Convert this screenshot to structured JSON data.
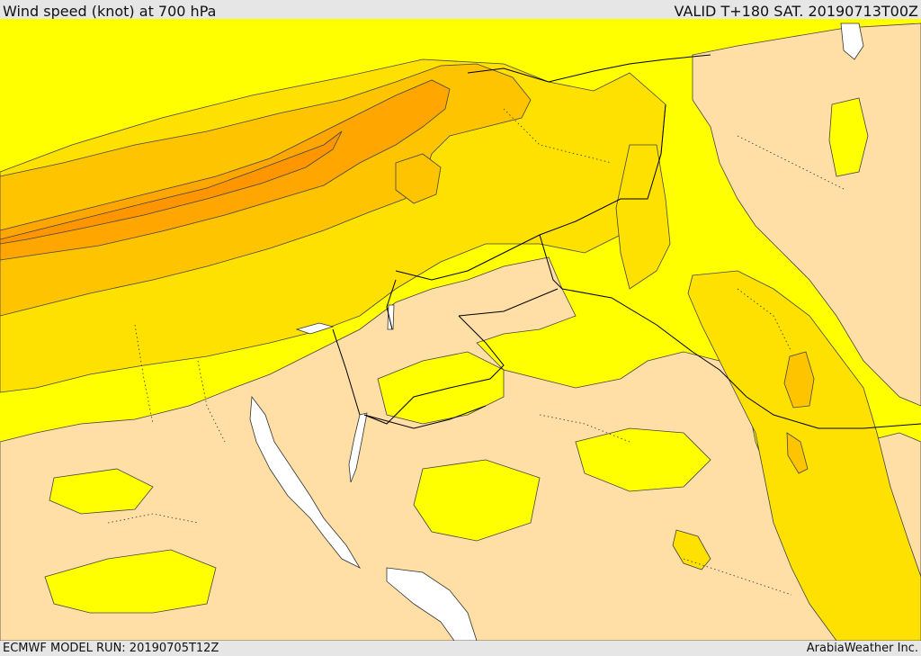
{
  "header": {
    "title": "Wind speed (knot) at 700 hPa",
    "valid": "VALID T+180 SAT. 20190713T00Z"
  },
  "footer": {
    "model_run": "ECMWF MODEL RUN: 20190705T12Z",
    "credit": "ArabiaWeather Inc."
  },
  "map": {
    "colors": {
      "calm": "#ffdfa6",
      "light": "#ffff00",
      "moderate": "#ffe100",
      "fresh": "#ffc400",
      "strong": "#ffa600",
      "very_strong": "#ff9600",
      "water_dry": "#ffffff",
      "border": "#000000",
      "contour": "#444444"
    }
  }
}
